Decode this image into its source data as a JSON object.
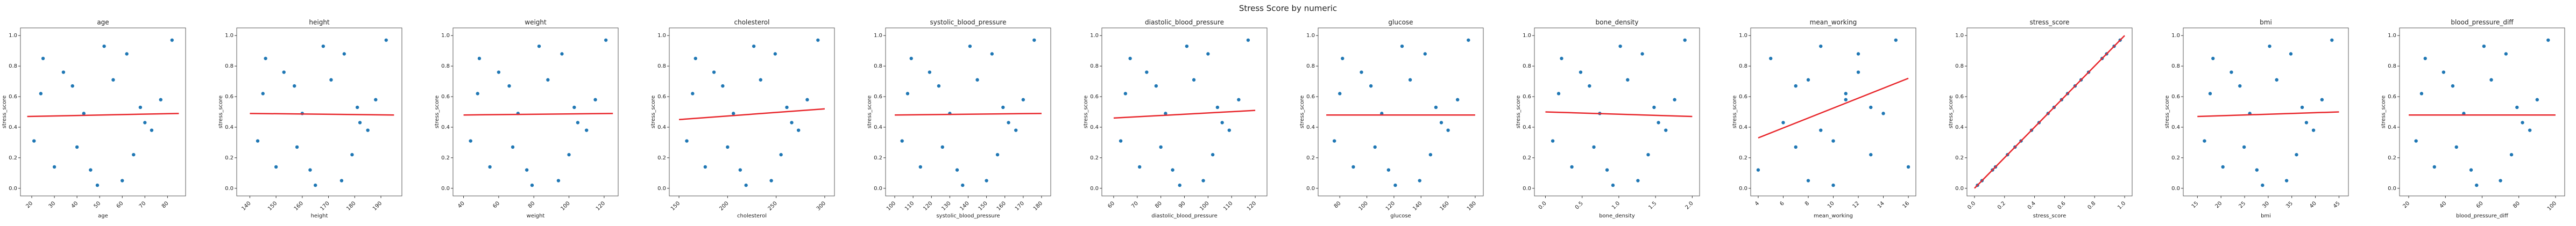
{
  "title": "Stress Score by numeric",
  "chart_data": [
    {
      "type": "scatter",
      "title": "age",
      "x_label": "age",
      "y_label": "stress_score",
      "color": "#1f77b4",
      "x": [
        46,
        25,
        70,
        38,
        60,
        52,
        21,
        77,
        34,
        65,
        43,
        82,
        30,
        56,
        73,
        49,
        24,
        62,
        40,
        68
      ],
      "y": [
        0.12,
        0.85,
        0.43,
        0.67,
        0.05,
        0.93,
        0.31,
        0.58,
        0.76,
        0.22,
        0.49,
        0.97,
        0.14,
        0.71,
        0.38,
        0.02,
        0.62,
        0.88,
        0.27,
        0.53
      ],
      "line": {
        "x": [
          18,
          85
        ],
        "y": [
          0.47,
          0.49
        ],
        "color": "#e8262b"
      },
      "xlim": [
        15,
        88
      ],
      "xticks": [
        20,
        30,
        40,
        50,
        60,
        70,
        80
      ],
      "ylim": [
        -0.05,
        1.05
      ],
      "yticks": [
        {
          "value": 0,
          "label": "0.0"
        },
        {
          "value": 0.2,
          "label": "0.2"
        },
        {
          "value": 0.4,
          "label": "0.4"
        },
        {
          "value": 0.6,
          "label": "0.6"
        },
        {
          "value": 0.8,
          "label": "0.8"
        },
        {
          "value": 1,
          "label": "1.0"
        }
      ]
    },
    {
      "type": "scatter",
      "title": "height",
      "x_label": "height",
      "y_label": "stress_score",
      "color": "#1f77b4",
      "x": [
        163,
        146,
        182,
        157,
        175,
        168,
        143,
        188,
        153,
        179,
        160,
        192,
        150,
        171,
        185,
        165,
        145,
        176,
        158,
        181
      ],
      "y": [
        0.12,
        0.85,
        0.43,
        0.67,
        0.05,
        0.93,
        0.31,
        0.58,
        0.76,
        0.22,
        0.49,
        0.97,
        0.14,
        0.71,
        0.38,
        0.02,
        0.62,
        0.88,
        0.27,
        0.53
      ],
      "line": {
        "x": [
          140,
          195
        ],
        "y": [
          0.49,
          0.48
        ],
        "color": "#e8262b"
      },
      "xlim": [
        135,
        198
      ],
      "xticks": [
        140,
        150,
        160,
        170,
        180,
        190
      ],
      "ylim": [
        -0.05,
        1.05
      ],
      "yticks": [
        {
          "value": 0,
          "label": "0.0"
        },
        {
          "value": 0.2,
          "label": "0.2"
        },
        {
          "value": 0.4,
          "label": "0.4"
        },
        {
          "value": 0.6,
          "label": "0.6"
        },
        {
          "value": 0.8,
          "label": "0.8"
        },
        {
          "value": 1,
          "label": "1.0"
        }
      ]
    },
    {
      "type": "scatter",
      "title": "weight",
      "x_label": "weight",
      "y_label": "stress_score",
      "color": "#1f77b4",
      "x": [
        76,
        49,
        105,
        66,
        94,
        83,
        44,
        115,
        60,
        100,
        71,
        121,
        55,
        88,
        110,
        79,
        48,
        96,
        68,
        103
      ],
      "y": [
        0.12,
        0.85,
        0.43,
        0.67,
        0.05,
        0.93,
        0.31,
        0.58,
        0.76,
        0.22,
        0.49,
        0.97,
        0.14,
        0.71,
        0.38,
        0.02,
        0.62,
        0.88,
        0.27,
        0.53
      ],
      "line": {
        "x": [
          40,
          125
        ],
        "y": [
          0.48,
          0.49
        ],
        "color": "#e8262b"
      },
      "xlim": [
        34,
        128
      ],
      "xticks": [
        40,
        60,
        80,
        100,
        120
      ],
      "ylim": [
        -0.05,
        1.05
      ],
      "yticks": [
        {
          "value": 0,
          "label": "0.0"
        },
        {
          "value": 0.2,
          "label": "0.2"
        },
        {
          "value": 0.4,
          "label": "0.4"
        },
        {
          "value": 0.6,
          "label": "0.6"
        },
        {
          "value": 0.8,
          "label": "0.8"
        },
        {
          "value": 1,
          "label": "1.0"
        }
      ]
    },
    {
      "type": "scatter",
      "title": "cholesterol",
      "x_label": "cholesterol",
      "y_label": "stress_score",
      "color": "#1f77b4",
      "x": [
        213,
        167,
        266,
        195,
        245,
        227,
        158,
        282,
        186,
        255,
        206,
        293,
        177,
        234,
        273,
        219,
        164,
        249,
        200,
        261
      ],
      "y": [
        0.12,
        0.85,
        0.43,
        0.67,
        0.05,
        0.93,
        0.31,
        0.58,
        0.76,
        0.22,
        0.49,
        0.97,
        0.14,
        0.71,
        0.38,
        0.02,
        0.62,
        0.88,
        0.27,
        0.53
      ],
      "line": {
        "x": [
          150,
          300
        ],
        "y": [
          0.45,
          0.52
        ],
        "color": "#e8262b"
      },
      "xlim": [
        140,
        310
      ],
      "xticks": [
        150,
        200,
        250,
        300
      ],
      "ylim": [
        -0.05,
        1.05
      ],
      "yticks": [
        {
          "value": 0,
          "label": "0.0"
        },
        {
          "value": 0.2,
          "label": "0.2"
        },
        {
          "value": 0.4,
          "label": "0.4"
        },
        {
          "value": 0.6,
          "label": "0.6"
        },
        {
          "value": 0.8,
          "label": "0.8"
        },
        {
          "value": 1,
          "label": "1.0"
        }
      ]
    },
    {
      "type": "scatter",
      "title": "systolic_blood_pressure",
      "x_label": "systolic_blood_pressure",
      "y_label": "stress_score",
      "color": "#1f77b4",
      "x": [
        134,
        109,
        162,
        124,
        150,
        141,
        104,
        170,
        119,
        156,
        130,
        176,
        114,
        145,
        166,
        137,
        107,
        153,
        126,
        159
      ],
      "y": [
        0.12,
        0.85,
        0.43,
        0.67,
        0.05,
        0.93,
        0.31,
        0.58,
        0.76,
        0.22,
        0.49,
        0.97,
        0.14,
        0.71,
        0.38,
        0.02,
        0.62,
        0.88,
        0.27,
        0.53
      ],
      "line": {
        "x": [
          100,
          180
        ],
        "y": [
          0.48,
          0.49
        ],
        "color": "#e8262b"
      },
      "xlim": [
        95,
        185
      ],
      "xticks": [
        100,
        110,
        120,
        130,
        140,
        150,
        160,
        170,
        180
      ],
      "ylim": [
        -0.05,
        1.05
      ],
      "yticks": [
        {
          "value": 0,
          "label": "0.0"
        },
        {
          "value": 0.2,
          "label": "0.2"
        },
        {
          "value": 0.4,
          "label": "0.4"
        },
        {
          "value": 0.6,
          "label": "0.6"
        },
        {
          "value": 0.8,
          "label": "0.8"
        },
        {
          "value": 1,
          "label": "1.0"
        }
      ]
    },
    {
      "type": "scatter",
      "title": "diastolic_blood_pressure",
      "x_label": "diastolic_blood_pressure",
      "y_label": "stress_score",
      "color": "#1f77b4",
      "x": [
        85,
        67,
        106,
        78,
        98,
        91,
        63,
        113,
        74,
        102,
        82,
        117,
        71,
        94,
        109,
        88,
        65,
        100,
        80,
        104
      ],
      "y": [
        0.12,
        0.85,
        0.43,
        0.67,
        0.05,
        0.93,
        0.31,
        0.58,
        0.76,
        0.22,
        0.49,
        0.97,
        0.14,
        0.71,
        0.38,
        0.02,
        0.62,
        0.88,
        0.27,
        0.53
      ],
      "line": {
        "x": [
          60,
          120
        ],
        "y": [
          0.46,
          0.51
        ],
        "color": "#e8262b"
      },
      "xlim": [
        55,
        125
      ],
      "xticks": [
        60,
        70,
        80,
        90,
        100,
        110,
        120
      ],
      "ylim": [
        -0.05,
        1.05
      ],
      "yticks": [
        {
          "value": 0,
          "label": "0.0"
        },
        {
          "value": 0.2,
          "label": "0.2"
        },
        {
          "value": 0.4,
          "label": "0.4"
        },
        {
          "value": 0.6,
          "label": "0.6"
        },
        {
          "value": 0.8,
          "label": "0.8"
        },
        {
          "value": 1,
          "label": "1.0"
        }
      ]
    },
    {
      "type": "scatter",
      "title": "glucose",
      "x_label": "glucose",
      "y_label": "stress_score",
      "color": "#1f77b4",
      "x": [
        116,
        82,
        155,
        103,
        139,
        126,
        76,
        167,
        96,
        147,
        111,
        175,
        90,
        132,
        160,
        121,
        80,
        143,
        106,
        151
      ],
      "y": [
        0.12,
        0.85,
        0.43,
        0.67,
        0.05,
        0.93,
        0.31,
        0.58,
        0.76,
        0.22,
        0.49,
        0.97,
        0.14,
        0.71,
        0.38,
        0.02,
        0.62,
        0.88,
        0.27,
        0.53
      ],
      "line": {
        "x": [
          70,
          180
        ],
        "y": [
          0.48,
          0.48
        ],
        "color": "#e8262b"
      },
      "xlim": [
        64,
        186
      ],
      "xticks": [
        80,
        100,
        120,
        140,
        160,
        180
      ],
      "ylim": [
        -0.05,
        1.05
      ],
      "yticks": [
        {
          "value": 0,
          "label": "0.0"
        },
        {
          "value": 0.2,
          "label": "0.2"
        },
        {
          "value": 0.4,
          "label": "0.4"
        },
        {
          "value": 0.6,
          "label": "0.6"
        },
        {
          "value": 0.8,
          "label": "0.8"
        },
        {
          "value": 1,
          "label": "1.0"
        }
      ]
    },
    {
      "type": "scatter",
      "title": "bone_density",
      "x_label": "bone_density",
      "y_label": "stress_score",
      "color": "#1f77b4",
      "x": [
        0.84,
        0.22,
        1.54,
        0.6,
        1.26,
        1.02,
        0.1,
        1.76,
        0.48,
        1.4,
        0.74,
        1.9,
        0.36,
        1.12,
        1.64,
        0.92,
        0.18,
        1.32,
        0.66,
        1.48
      ],
      "y": [
        0.12,
        0.85,
        0.43,
        0.67,
        0.05,
        0.93,
        0.31,
        0.58,
        0.76,
        0.22,
        0.49,
        0.97,
        0.14,
        0.71,
        0.38,
        0.02,
        0.62,
        0.88,
        0.27,
        0.53
      ],
      "line": {
        "x": [
          0,
          2
        ],
        "y": [
          0.5,
          0.47
        ],
        "color": "#e8262b"
      },
      "xlim": [
        -0.15,
        2.1
      ],
      "xticks": [
        {
          "value": 0,
          "label": "0.0"
        },
        {
          "value": 0.5,
          "label": "0.5"
        },
        {
          "value": 1,
          "label": "1.0"
        },
        {
          "value": 1.5,
          "label": "1.5"
        },
        {
          "value": 2,
          "label": "2.0"
        }
      ],
      "ylim": [
        -0.05,
        1.05
      ],
      "yticks": [
        {
          "value": 0,
          "label": "0.0"
        },
        {
          "value": 0.2,
          "label": "0.2"
        },
        {
          "value": 0.4,
          "label": "0.4"
        },
        {
          "value": 0.6,
          "label": "0.6"
        },
        {
          "value": 0.8,
          "label": "0.8"
        },
        {
          "value": 1,
          "label": "1.0"
        }
      ]
    },
    {
      "type": "scatter",
      "title": "mean_working",
      "x_label": "mean_working",
      "y_label": "stress_score",
      "color": "#1f77b4",
      "x": [
        4,
        5,
        6,
        7,
        8,
        9,
        10,
        11,
        12,
        13,
        14,
        15,
        16,
        8,
        9,
        10,
        11,
        12,
        7,
        13
      ],
      "y": [
        0.12,
        0.85,
        0.43,
        0.67,
        0.05,
        0.93,
        0.31,
        0.58,
        0.76,
        0.22,
        0.49,
        0.97,
        0.14,
        0.71,
        0.38,
        0.02,
        0.62,
        0.88,
        0.27,
        0.53
      ],
      "line": {
        "x": [
          4,
          16
        ],
        "y": [
          0.33,
          0.72
        ],
        "color": "#e8262b"
      },
      "xlim": [
        3.4,
        16.6
      ],
      "xticks": [
        4,
        6,
        8,
        10,
        12,
        14,
        16
      ],
      "ylim": [
        -0.05,
        1.05
      ],
      "yticks": [
        {
          "value": 0,
          "label": "0.0"
        },
        {
          "value": 0.2,
          "label": "0.2"
        },
        {
          "value": 0.4,
          "label": "0.4"
        },
        {
          "value": 0.6,
          "label": "0.6"
        },
        {
          "value": 0.8,
          "label": "0.8"
        },
        {
          "value": 1,
          "label": "1.0"
        }
      ]
    },
    {
      "type": "scatter",
      "title": "stress_score",
      "x_label": "stress_score",
      "y_label": "stress_score",
      "color": "#1f77b4",
      "x": [
        0.12,
        0.85,
        0.43,
        0.67,
        0.05,
        0.93,
        0.31,
        0.58,
        0.76,
        0.22,
        0.49,
        0.97,
        0.14,
        0.71,
        0.38,
        0.02,
        0.62,
        0.88,
        0.27,
        0.53
      ],
      "y": [
        0.12,
        0.85,
        0.43,
        0.67,
        0.05,
        0.93,
        0.31,
        0.58,
        0.76,
        0.22,
        0.49,
        0.97,
        0.14,
        0.71,
        0.38,
        0.02,
        0.62,
        0.88,
        0.27,
        0.53
      ],
      "line": {
        "x": [
          0,
          1
        ],
        "y": [
          0,
          1
        ],
        "color": "#e8262b"
      },
      "xlim": [
        -0.05,
        1.05
      ],
      "xticks": [
        {
          "value": 0,
          "label": "0.0"
        },
        {
          "value": 0.2,
          "label": "0.2"
        },
        {
          "value": 0.4,
          "label": "0.4"
        },
        {
          "value": 0.6,
          "label": "0.6"
        },
        {
          "value": 0.8,
          "label": "0.8"
        },
        {
          "value": 1,
          "label": "1.0"
        }
      ],
      "ylim": [
        -0.05,
        1.05
      ],
      "yticks": [
        {
          "value": 0,
          "label": "0.0"
        },
        {
          "value": 0.2,
          "label": "0.2"
        },
        {
          "value": 0.4,
          "label": "0.4"
        },
        {
          "value": 0.6,
          "label": "0.6"
        },
        {
          "value": 0.8,
          "label": "0.8"
        },
        {
          "value": 1,
          "label": "1.0"
        }
      ]
    },
    {
      "type": "scatter",
      "title": "bmi",
      "x_label": "bmi",
      "y_label": "stress_score",
      "color": "#1f77b4",
      "x": [
        27.6,
        18.3,
        38.1,
        24,
        33.9,
        30.3,
        16.5,
        41.4,
        22.2,
        36,
        26.1,
        43.5,
        20.4,
        31.8,
        39.6,
        28.8,
        17.7,
        34.8,
        24.9,
        37.2
      ],
      "y": [
        0.12,
        0.85,
        0.43,
        0.67,
        0.05,
        0.93,
        0.31,
        0.58,
        0.76,
        0.22,
        0.49,
        0.97,
        0.14,
        0.71,
        0.38,
        0.02,
        0.62,
        0.88,
        0.27,
        0.53
      ],
      "line": {
        "x": [
          15,
          45
        ],
        "y": [
          0.47,
          0.5
        ],
        "color": "#e8262b"
      },
      "xlim": [
        12,
        47
      ],
      "xticks": [
        15,
        20,
        25,
        30,
        35,
        40,
        45
      ],
      "ylim": [
        -0.05,
        1.05
      ],
      "yticks": [
        {
          "value": 0,
          "label": "0.0"
        },
        {
          "value": 0.2,
          "label": "0.2"
        },
        {
          "value": 0.4,
          "label": "0.4"
        },
        {
          "value": 0.6,
          "label": "0.6"
        },
        {
          "value": 0.8,
          "label": "0.8"
        },
        {
          "value": 1,
          "label": "1.0"
        }
      ]
    },
    {
      "type": "scatter",
      "title": "blood_pressure_diff",
      "x_label": "blood_pressure_diff",
      "y_label": "stress_score",
      "color": "#1f77b4",
      "x": [
        54,
        29,
        82,
        44,
        70,
        61,
        24,
        90,
        39,
        76,
        50,
        96,
        34,
        65,
        86,
        57,
        27,
        73,
        46,
        79
      ],
      "y": [
        0.12,
        0.85,
        0.43,
        0.67,
        0.05,
        0.93,
        0.31,
        0.58,
        0.76,
        0.22,
        0.49,
        0.97,
        0.14,
        0.71,
        0.38,
        0.02,
        0.62,
        0.88,
        0.27,
        0.53
      ],
      "line": {
        "x": [
          20,
          100
        ],
        "y": [
          0.48,
          0.48
        ],
        "color": "#e8262b"
      },
      "xlim": [
        15,
        105
      ],
      "xticks": [
        20,
        40,
        60,
        80,
        100
      ],
      "ylim": [
        -0.05,
        1.05
      ],
      "yticks": [
        {
          "value": 0,
          "label": "0.0"
        },
        {
          "value": 0.2,
          "label": "0.2"
        },
        {
          "value": 0.4,
          "label": "0.4"
        },
        {
          "value": 0.6,
          "label": "0.6"
        },
        {
          "value": 0.8,
          "label": "0.8"
        },
        {
          "value": 1,
          "label": "1.0"
        }
      ]
    }
  ]
}
